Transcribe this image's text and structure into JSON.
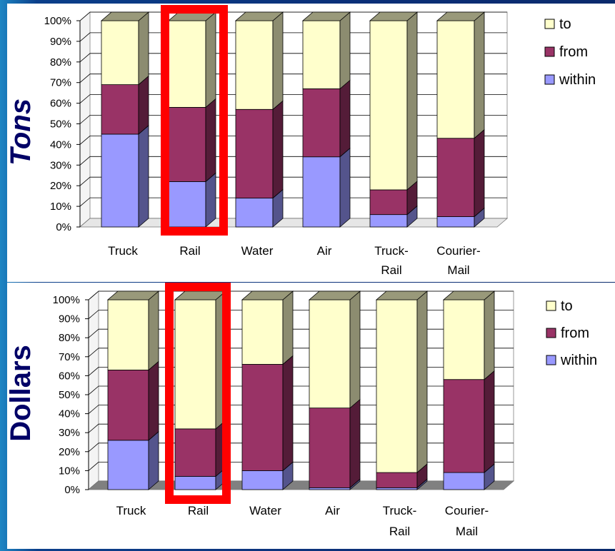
{
  "colors": {
    "to": "#ffffcc",
    "from": "#993366",
    "within": "#9999ff",
    "highlight": "#ff0000",
    "ylabel": "#000066",
    "panel": "#ffffff"
  },
  "chart_data": [
    {
      "type": "bar",
      "stacked": true,
      "ylabel": "Tons",
      "categories": [
        "Truck",
        "Rail",
        "Water",
        "Air",
        "Truck-Rail",
        "Courier-Mail"
      ],
      "y_ticks": [
        "0%",
        "10%",
        "20%",
        "30%",
        "40%",
        "50%",
        "60%",
        "70%",
        "80%",
        "90%",
        "100%"
      ],
      "ylim": [
        0,
        100
      ],
      "series": [
        {
          "name": "within",
          "values": [
            45,
            22,
            14,
            34,
            6,
            5
          ]
        },
        {
          "name": "from",
          "values": [
            24,
            36,
            43,
            33,
            12,
            38
          ]
        },
        {
          "name": "to",
          "values": [
            31,
            42,
            43,
            33,
            82,
            57
          ]
        }
      ],
      "legend": [
        "to",
        "from",
        "within"
      ],
      "legend_position": "right",
      "highlighted_category": "Rail"
    },
    {
      "type": "bar",
      "stacked": true,
      "ylabel": "Dollars",
      "categories": [
        "Truck",
        "Rail",
        "Water",
        "Air",
        "Truck-Rail",
        "Courier-Mail"
      ],
      "y_ticks": [
        "0%",
        "10%",
        "20%",
        "30%",
        "40%",
        "50%",
        "60%",
        "70%",
        "80%",
        "90%",
        "100%"
      ],
      "ylim": [
        0,
        100
      ],
      "series": [
        {
          "name": "within",
          "values": [
            26,
            7,
            10,
            1,
            1,
            9
          ]
        },
        {
          "name": "from",
          "values": [
            37,
            25,
            56,
            42,
            8,
            49
          ]
        },
        {
          "name": "to",
          "values": [
            37,
            68,
            34,
            57,
            91,
            42
          ]
        }
      ],
      "legend": [
        "to",
        "from",
        "within"
      ],
      "legend_position": "right",
      "highlighted_category": "Rail"
    }
  ]
}
